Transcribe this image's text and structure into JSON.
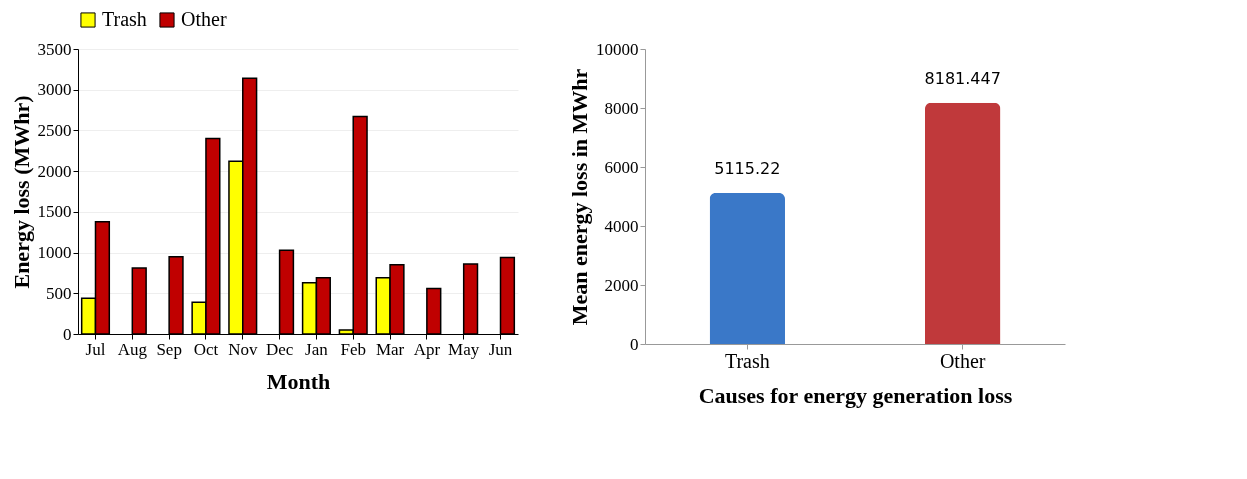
{
  "chart_data": [
    {
      "type": "bar",
      "xlabel": "Month",
      "ylabel": "Energy loss (MWhr)",
      "categories": [
        "Jul",
        "Aug",
        "Sep",
        "Oct",
        "Nov",
        "Dec",
        "Jan",
        "Feb",
        "Mar",
        "Apr",
        "May",
        "Jun"
      ],
      "series": [
        {
          "name": "Trash",
          "color": "#ffff00",
          "values": [
            440,
            null,
            null,
            390,
            2120,
            null,
            630,
            50,
            690,
            null,
            null,
            null
          ]
        },
        {
          "name": "Other",
          "color": "#c00000",
          "values": [
            1380,
            810,
            950,
            2400,
            3140,
            1030,
            690,
            2670,
            850,
            560,
            860,
            940
          ]
        }
      ],
      "ylim": [
        0,
        3500
      ],
      "yticks": [
        0,
        500,
        1000,
        1500,
        2000,
        2500,
        3000,
        3500
      ],
      "grid": "y",
      "legend": "top"
    },
    {
      "type": "bar",
      "xlabel": "Causes for energy generation loss",
      "ylabel": "Mean energy loss in MWhr",
      "categories": [
        "Trash",
        "Other"
      ],
      "values": [
        5115.22,
        8181.447
      ],
      "colors": [
        "#3a78c8",
        "#c0393b"
      ],
      "data_labels": true,
      "ylim": [
        0,
        10000
      ],
      "yticks": [
        0,
        2000,
        4000,
        6000,
        8000,
        10000
      ]
    }
  ]
}
